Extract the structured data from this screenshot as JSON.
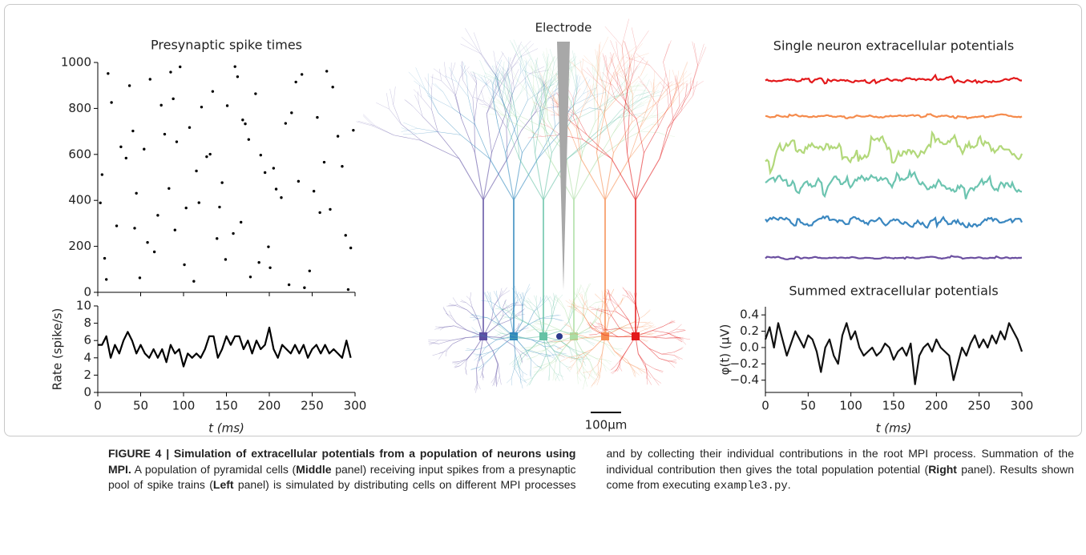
{
  "chart_data": [
    {
      "type": "scatter",
      "title": "Presynaptic spike times",
      "x": [
        12,
        45,
        78,
        101,
        134,
        167,
        190,
        223,
        256,
        289,
        5,
        37,
        66,
        92,
        118,
        151,
        178,
        205,
        238,
        271,
        298,
        22,
        54,
        88,
        112,
        145,
        172,
        199,
        231,
        264,
        8,
        41,
        70,
        96,
        127,
        158,
        184,
        214,
        247,
        280,
        16,
        49,
        83,
        107,
        139,
        163,
        195,
        226,
        259,
        292,
        3,
        33,
        61,
        90,
        121,
        149,
        176,
        208,
        241,
        274,
        27,
        58,
        85,
        115,
        142,
        169,
        201,
        234,
        267,
        295,
        10,
        43,
        74,
        103,
        131,
        160,
        188,
        219,
        252,
        285
      ],
      "y": [
        952,
        431,
        688,
        120,
        874,
        305,
        597,
        33,
        761,
        248,
        512,
        899,
        176,
        655,
        390,
        812,
        67,
        540,
        948,
        361,
        705,
        289,
        623,
        842,
        48,
        477,
        733,
        198,
        915,
        566,
        148,
        702,
        335,
        981,
        590,
        256,
        864,
        412,
        93,
        679,
        826,
        63,
        452,
        717,
        234,
        938,
        521,
        781,
        347,
        12,
        389,
        584,
        927,
        271,
        806,
        143,
        665,
        449,
        20,
        893,
        633,
        217,
        958,
        528,
        371,
        750,
        107,
        483,
        962,
        193,
        56,
        279,
        814,
        367,
        601,
        982,
        130,
        735,
        440,
        548
      ],
      "xlim": [
        0,
        300
      ],
      "ylim": [
        0,
        1000
      ],
      "xticks": [
        0,
        50,
        100,
        150,
        200,
        250,
        300
      ],
      "yticks": [
        0,
        200,
        400,
        600,
        800,
        1000
      ],
      "color": "#000000"
    },
    {
      "type": "line",
      "ylabel": "Rate (spike/s)",
      "xlabel": "t (ms)",
      "x": [
        0,
        5,
        10,
        15,
        20,
        25,
        30,
        35,
        40,
        45,
        50,
        55,
        60,
        65,
        70,
        75,
        80,
        85,
        90,
        95,
        100,
        105,
        110,
        115,
        120,
        125,
        130,
        135,
        140,
        145,
        150,
        155,
        160,
        165,
        170,
        175,
        180,
        185,
        190,
        195,
        200,
        205,
        210,
        215,
        220,
        225,
        230,
        235,
        240,
        245,
        250,
        255,
        260,
        265,
        270,
        275,
        280,
        285,
        290,
        295
      ],
      "values": [
        5.5,
        5.5,
        6.5,
        4,
        5.5,
        4.5,
        6,
        7,
        6,
        4.5,
        5.5,
        4.5,
        4,
        5,
        4,
        5,
        3.5,
        5.5,
        4.5,
        5,
        3,
        4.5,
        4,
        4.5,
        4,
        5,
        6.5,
        6.5,
        4,
        5,
        6.5,
        5.5,
        6.5,
        6.5,
        5,
        6,
        4.5,
        6,
        5,
        5.5,
        7.5,
        5,
        4,
        5.5,
        5,
        4.5,
        5.5,
        4.5,
        5.5,
        4,
        5,
        5.5,
        4.5,
        5.5,
        4.5,
        5,
        4.5,
        4,
        6,
        4
      ],
      "xlim": [
        0,
        300
      ],
      "ylim": [
        0,
        10
      ],
      "xticks": [
        0,
        50,
        100,
        150,
        200,
        250,
        300
      ],
      "yticks": [
        0,
        2,
        4,
        6,
        8,
        10
      ],
      "color": "#000000"
    },
    {
      "type": "line",
      "title": "Summed extracellular potentials",
      "ylabel": "φ(t) (μV)",
      "xlabel": "t (ms)",
      "x": [
        0,
        5,
        10,
        15,
        20,
        25,
        30,
        35,
        40,
        45,
        50,
        55,
        60,
        65,
        70,
        75,
        80,
        85,
        90,
        95,
        100,
        105,
        110,
        115,
        120,
        125,
        130,
        135,
        140,
        145,
        150,
        155,
        160,
        165,
        170,
        175,
        180,
        185,
        190,
        195,
        200,
        205,
        210,
        215,
        220,
        225,
        230,
        235,
        240,
        245,
        250,
        255,
        260,
        265,
        270,
        275,
        280,
        285,
        290,
        295,
        300
      ],
      "values": [
        0.1,
        0.25,
        0.0,
        0.3,
        0.1,
        -0.1,
        0.05,
        0.2,
        0.1,
        0.0,
        0.15,
        0.1,
        -0.05,
        -0.3,
        0.0,
        0.1,
        -0.1,
        -0.2,
        0.15,
        0.3,
        0.1,
        0.2,
        0.0,
        -0.1,
        -0.05,
        0.0,
        -0.1,
        -0.05,
        0.05,
        0.0,
        -0.15,
        -0.05,
        0.0,
        -0.1,
        0.05,
        -0.45,
        -0.1,
        0.0,
        0.05,
        -0.05,
        0.1,
        0.0,
        -0.05,
        -0.1,
        -0.4,
        -0.2,
        0.0,
        -0.1,
        0.05,
        0.15,
        0.0,
        0.1,
        0.0,
        0.15,
        0.05,
        0.2,
        0.1,
        0.3,
        0.2,
        0.1,
        -0.05
      ],
      "xlim": [
        0,
        300
      ],
      "ylim": [
        -0.55,
        0.5
      ],
      "xticks": [
        0,
        50,
        100,
        150,
        200,
        250,
        300
      ],
      "yticks": [
        {
          "value": -0.4,
          "label": "−0.4"
        },
        {
          "value": -0.2,
          "label": "−0.2"
        },
        {
          "value": 0,
          "label": "0.0"
        },
        0.2,
        0.4
      ],
      "color": "#111111"
    }
  ],
  "middle": {
    "electrode_label": "Electrode",
    "scale_label": "100μm"
  },
  "traces_title": "Single neuron extracellular potentials",
  "caption": {
    "runs": [
      {
        "text": "FIGURE 4 | Simulation of extracellular potentials from a population of neurons using MPI.",
        "style": "bold"
      },
      {
        "text": " A population of pyramidal cells (",
        "style": "normal"
      },
      {
        "text": "Middle",
        "style": "bold"
      },
      {
        "text": " panel) receiving input spikes from a presynaptic pool of spike trains (",
        "style": "normal"
      },
      {
        "text": "Left",
        "style": "bold"
      },
      {
        "text": " panel) is simulated by distributing cells on different MPI processes and by collecting their individual contributions in the root MPI process. Summation of the individual contribution then gives the total population potential (",
        "style": "normal"
      },
      {
        "text": "Right",
        "style": "bold"
      },
      {
        "text": " panel). Results shown come from executing ",
        "style": "normal"
      },
      {
        "text": "example3.py",
        "style": "mono"
      },
      {
        "text": ".",
        "style": "normal"
      }
    ]
  }
}
